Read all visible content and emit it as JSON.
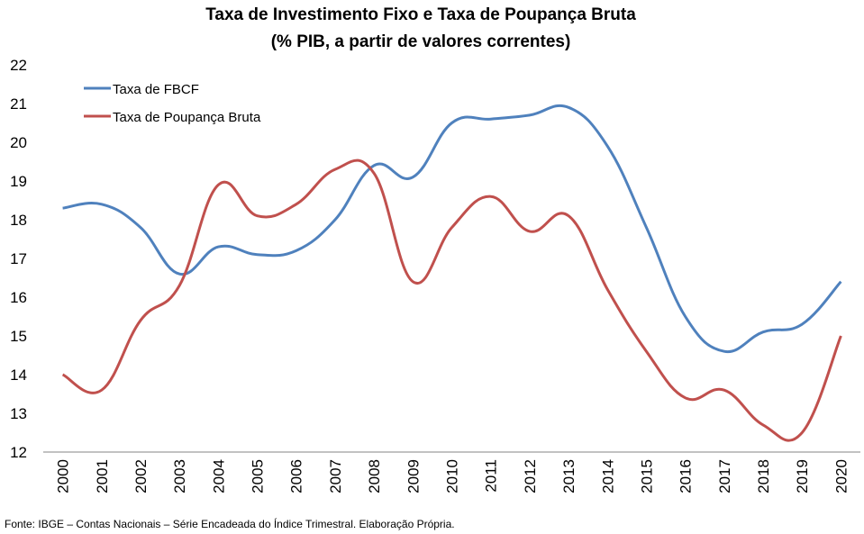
{
  "chart_data": {
    "type": "line",
    "title": "Taxa de Investimento Fixo e Taxa de Poupança Bruta",
    "subtitle": "(% PIB, a partir de valores correntes)",
    "x": [
      "2000",
      "2001",
      "2002",
      "2003",
      "2004",
      "2005",
      "2006",
      "2007",
      "2008",
      "2009",
      "2010",
      "2011",
      "2012",
      "2013",
      "2014",
      "2015",
      "2016",
      "2017",
      "2018",
      "2019",
      "2020"
    ],
    "ylim": [
      12,
      22
    ],
    "yticks": [
      "12",
      "13",
      "14",
      "15",
      "16",
      "17",
      "18",
      "19",
      "20",
      "21",
      "22"
    ],
    "grid": false,
    "legend_position": "top-left",
    "series": [
      {
        "name": "Taxa de FBCF",
        "color": "#4F81BD",
        "values": [
          18.3,
          18.4,
          17.8,
          16.6,
          17.3,
          17.1,
          17.2,
          18.0,
          19.4,
          19.1,
          20.5,
          20.6,
          20.7,
          20.9,
          19.9,
          17.8,
          15.5,
          14.6,
          15.1,
          15.3,
          16.4
        ]
      },
      {
        "name": "Taxa de Poupança Bruta",
        "color": "#C0504D",
        "values": [
          14.0,
          13.6,
          15.4,
          16.3,
          18.9,
          18.1,
          18.4,
          19.3,
          19.2,
          16.4,
          17.8,
          18.6,
          17.7,
          18.1,
          16.2,
          14.6,
          13.4,
          13.6,
          12.7,
          12.5,
          15.0
        ]
      }
    ]
  },
  "source": "Fonte: IBGE – Contas Nacionais – Série Encadeada do Índice Trimestral. Elaboração Própria."
}
